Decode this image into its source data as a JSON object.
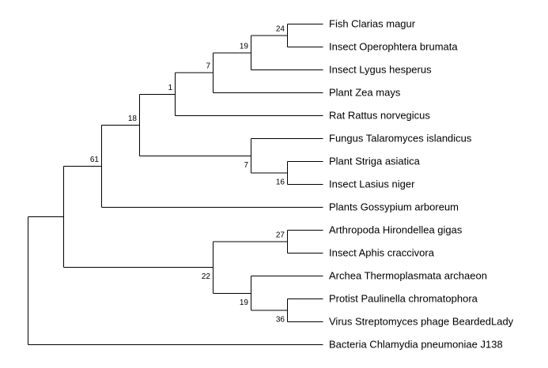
{
  "tree": {
    "leaves": [
      {
        "id": "L1",
        "label": "Fish Clarias magur"
      },
      {
        "id": "L2",
        "label": "Insect Operophtera brumata"
      },
      {
        "id": "L3",
        "label": "Insect Lygus hesperus"
      },
      {
        "id": "L4",
        "label": "Plant Zea mays"
      },
      {
        "id": "L5",
        "label": "Rat Rattus norvegicus"
      },
      {
        "id": "L6",
        "label": "Fungus Talaromyces islandicus"
      },
      {
        "id": "L7",
        "label": "Plant Striga asiatica"
      },
      {
        "id": "L8",
        "label": "Insect Lasius niger"
      },
      {
        "id": "L9",
        "label": "Plants Gossypium arboreum"
      },
      {
        "id": "L10",
        "label": "Arthropoda Hirondellea gigas"
      },
      {
        "id": "L11",
        "label": "Insect Aphis craccivora"
      },
      {
        "id": "L12",
        "label": "Archea Thermoplasmata archaeon"
      },
      {
        "id": "L13",
        "label": "Protist Paulinella chromatophora"
      },
      {
        "id": "L14",
        "label": "Virus Streptomyces phage BeardedLady"
      },
      {
        "id": "L15",
        "label": "Bacteria Chlamydia pneumoniae J138"
      }
    ],
    "nodes": [
      {
        "id": "n1",
        "support": "24",
        "children": [
          "L1",
          "L2"
        ]
      },
      {
        "id": "n2",
        "support": "19",
        "children": [
          "n1",
          "L3"
        ]
      },
      {
        "id": "n3",
        "support": "7",
        "children": [
          "n2",
          "L4"
        ]
      },
      {
        "id": "n4",
        "support": "1",
        "children": [
          "n3",
          "L5"
        ]
      },
      {
        "id": "n5",
        "support": "16",
        "children": [
          "L7",
          "L8"
        ]
      },
      {
        "id": "n6",
        "support": "7",
        "children": [
          "L6",
          "n5"
        ]
      },
      {
        "id": "n7",
        "support": "18",
        "children": [
          "n4",
          "n6"
        ]
      },
      {
        "id": "n8",
        "support": "61",
        "children": [
          "n7",
          "L9"
        ]
      },
      {
        "id": "n9",
        "support": "27",
        "children": [
          "L10",
          "L11"
        ]
      },
      {
        "id": "n10",
        "support": "36",
        "children": [
          "L13",
          "L14"
        ]
      },
      {
        "id": "n11",
        "support": "19",
        "children": [
          "L12",
          "n10"
        ]
      },
      {
        "id": "n12",
        "support": "22",
        "children": [
          "n9",
          "n11"
        ]
      },
      {
        "id": "n13",
        "support": "",
        "children": [
          "n8",
          "n12"
        ]
      },
      {
        "id": "root",
        "support": "",
        "children": [
          "n13",
          "L15"
        ]
      }
    ],
    "root": "root"
  }
}
